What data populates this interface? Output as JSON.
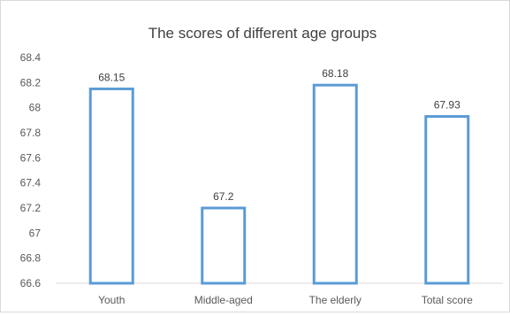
{
  "chart_data": {
    "type": "bar",
    "title": "The scores of different age groups",
    "categories": [
      "Youth",
      "Middle-aged",
      "The elderly",
      "Total score"
    ],
    "values": [
      68.15,
      67.2,
      68.18,
      67.93
    ],
    "value_labels": [
      "68.15",
      "67.2",
      "68.18",
      "67.93"
    ],
    "ylim": [
      66.6,
      68.4
    ],
    "yticks": [
      "66.6",
      "66.8",
      "67",
      "67.2",
      "67.4",
      "67.6",
      "67.8",
      "68",
      "68.2",
      "68.4"
    ],
    "ytick_values": [
      66.6,
      66.8,
      67.0,
      67.2,
      67.4,
      67.6,
      67.8,
      68.0,
      68.2,
      68.4
    ],
    "xlabel": "",
    "ylabel": "",
    "grid": false,
    "legend": "none",
    "bar_style": "outline",
    "bar_color": "#5b9bd5"
  }
}
